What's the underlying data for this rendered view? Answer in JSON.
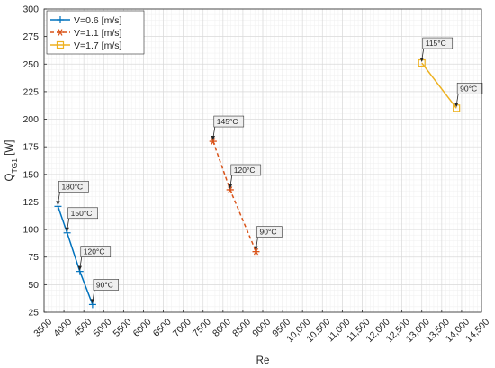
{
  "chart_data": {
    "type": "line",
    "xlabel": "Re",
    "ylabel": "Q",
    "ylabel_sub": "TG1",
    "ylabel_unit": " [W]",
    "xlim": [
      3500,
      14500
    ],
    "ylim": [
      25,
      300
    ],
    "x_ticks": [
      3500,
      4000,
      4500,
      5000,
      5500,
      6000,
      6500,
      7000,
      7500,
      8000,
      8500,
      9000,
      9500,
      10000,
      10500,
      11000,
      11500,
      12000,
      12500,
      13000,
      13500,
      14000,
      14500
    ],
    "x_tick_labels": [
      "3500",
      "4000",
      "4500",
      "5000",
      "5500",
      "6000",
      "6500",
      "7000",
      "7500",
      "8000",
      "8500",
      "9000",
      "9500",
      "10,000",
      "10,500",
      "11,000",
      "11,500",
      "12,000",
      "12,500",
      "13,000",
      "13,500",
      "14,000",
      "14,500"
    ],
    "y_ticks": [
      25,
      50,
      75,
      100,
      125,
      150,
      175,
      200,
      225,
      250,
      275,
      300
    ],
    "y_tick_labels": [
      "25",
      "50",
      "75",
      "100",
      "125",
      "150",
      "175",
      "200",
      "225",
      "250",
      "275",
      "300"
    ],
    "grid": true,
    "minor_grid": true,
    "legend_position": "top-left",
    "series": [
      {
        "name": "V=0.6 [m/s]",
        "color": "#0072BD",
        "line": "solid",
        "marker": "plus",
        "x": [
          3850,
          4080,
          4400,
          4720
        ],
        "y": [
          121,
          97,
          62,
          32
        ],
        "annotations": [
          "180°C",
          "150°C",
          "120°C",
          "90°C"
        ]
      },
      {
        "name": "V=1.1 [m/s]",
        "color": "#D95319",
        "line": "dashed",
        "marker": "asterisk",
        "x": [
          7750,
          8180,
          8830
        ],
        "y": [
          180,
          136,
          80
        ],
        "annotations": [
          "145°C",
          "120°C",
          "90°C"
        ]
      },
      {
        "name": "V=1.7 [m/s]",
        "color": "#EDB120",
        "line": "solid",
        "marker": "square",
        "x": [
          13000,
          13870
        ],
        "y": [
          251,
          210
        ],
        "annotations": [
          "115°C",
          "90°C"
        ]
      }
    ]
  }
}
